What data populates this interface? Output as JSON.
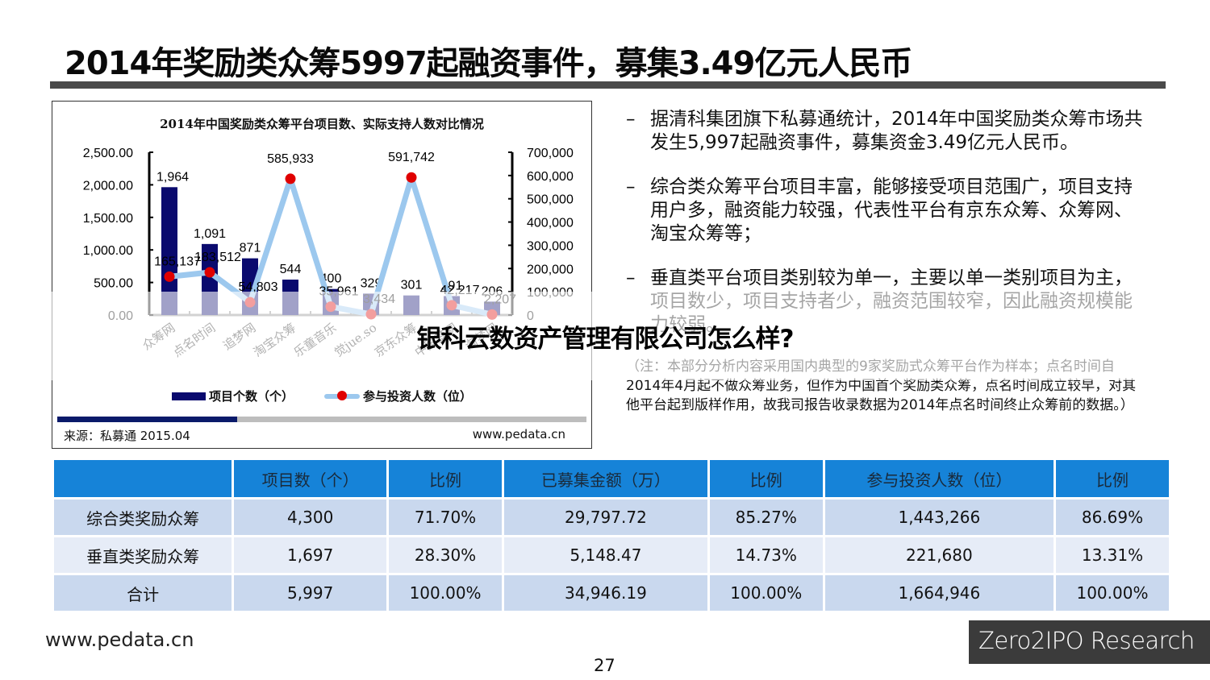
{
  "slide": {
    "title": "2014年奖励类众筹5997起融资事件，募集3.49亿元人民币",
    "page_number": "27",
    "footer_url": "www.pedata.cn",
    "brand": "Zero2IPO Research"
  },
  "overlay": {
    "headline": "银科云数资产管理有限公司怎么样?"
  },
  "chart_data": {
    "type": "bar+line",
    "title": "2014年中国奖励类众筹平台项目数、实际支持人数对比情况",
    "categories": [
      "众筹网",
      "点名时间",
      "追梦网",
      "淘宝众筹",
      "乐童音乐",
      "觉jue.so",
      "京东众筹",
      "中国梦网",
      "淘梦网"
    ],
    "series": [
      {
        "name": "项目个数（个）",
        "type": "bar",
        "axis": "left",
        "color": "#0a0a6e",
        "values": [
          1964,
          1091,
          871,
          544,
          400,
          329,
          301,
          291,
          206
        ],
        "labels": [
          "1,964",
          "1,091",
          "871",
          "544",
          "400",
          "329",
          "301",
          "291",
          "206"
        ]
      },
      {
        "name": "参与投资人数（位）",
        "type": "line",
        "axis": "right",
        "color": "#9cc8ee",
        "marker_color": "#e00000",
        "values": [
          165137,
          183512,
          54803,
          585933,
          35961,
          3434,
          591742,
          42217,
          2207
        ],
        "labels": [
          "165,137",
          "183,512",
          "54,803",
          "585,933",
          "35,961",
          "3,434",
          "591,742",
          "42,217",
          "2,207"
        ]
      }
    ],
    "y_left": {
      "ticks": [
        "0.00",
        "500.00",
        "1,000.00",
        "1,500.00",
        "2,000.00",
        "2,500.00"
      ],
      "ylim": [
        0,
        2500
      ]
    },
    "y_right": {
      "ticks": [
        "0",
        "100,000",
        "200,000",
        "300,000",
        "400,000",
        "500,000",
        "600,000",
        "700,000"
      ],
      "ylim": [
        0,
        700000
      ]
    },
    "legend": [
      "项目个数（个）",
      "参与投资人数（位）"
    ],
    "legend_position": "bottom",
    "grid": false,
    "source": "来源：私募通 2015.04",
    "source_url": "www.pedata.cn"
  },
  "bullets": [
    {
      "dash": "–",
      "text": "据清科集团旗下私募通统计，2014年中国奖励类众筹市场共发生5,997起融资事件，募集资金3.49亿元人民币。"
    },
    {
      "dash": "–",
      "text": "综合类众筹平台项目丰富，能够接受项目范围广，项目支持用户多，融资能力较强，代表性平台有京东众筹、众筹网、淘宝众筹等；"
    },
    {
      "dash": "–",
      "text": "垂直类平台项目类别较为单一，主要以单一类别项目为主，项目数少，项目支持者少，融资范围较窄，因此融资规模能力较弱。"
    }
  ],
  "note": "（注：本部分分析内容采用国内典型的9家奖励式众筹平台作为样本；点名时间自2014年4月起不做众筹业务，但作为中国首个奖励类众筹，点名时间成立较早，对其他平台起到版样作用，故我司报告收录数据为2014年点名时间终止众筹前的数据。）",
  "table": {
    "headers": [
      "",
      "项目数（个）",
      "比例",
      "已募集金额（万）",
      "比例",
      "参与投资人数（位）",
      "比例"
    ],
    "rows": [
      [
        "综合类奖励众筹",
        "4,300",
        "71.70%",
        "29,797.72",
        "85.27%",
        "1,443,266",
        "86.69%"
      ],
      [
        "垂直类奖励众筹",
        "1,697",
        "28.30%",
        "5,148.47",
        "14.73%",
        "221,680",
        "13.31%"
      ],
      [
        "合计",
        "5,997",
        "100.00%",
        "34,946.19",
        "100.00%",
        "1,664,946",
        "100.00%"
      ]
    ]
  }
}
